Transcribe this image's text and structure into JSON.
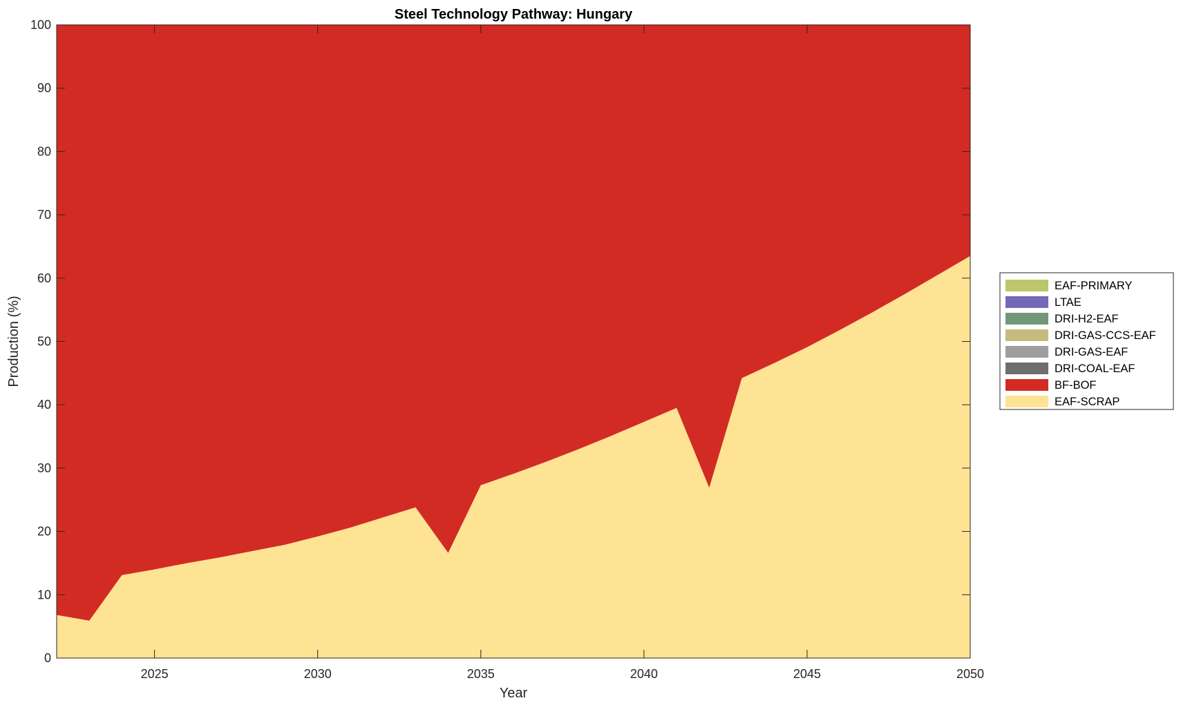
{
  "chart_data": {
    "type": "area",
    "stacked": true,
    "title": "Steel Technology Pathway: Hungary",
    "xlabel": "Year",
    "ylabel": "Production (%)",
    "xlim": [
      2022,
      2050
    ],
    "ylim": [
      0,
      100
    ],
    "xticks": [
      2025,
      2030,
      2035,
      2040,
      2045,
      2050
    ],
    "yticks": [
      0,
      10,
      20,
      30,
      40,
      50,
      60,
      70,
      80,
      90,
      100
    ],
    "grid": false,
    "legend_position": "right",
    "x": [
      2022,
      2023,
      2024,
      2025,
      2026,
      2027,
      2028,
      2029,
      2030,
      2031,
      2032,
      2033,
      2034,
      2035,
      2036,
      2037,
      2038,
      2039,
      2040,
      2041,
      2042,
      2043,
      2044,
      2045,
      2046,
      2047,
      2048,
      2049,
      2050
    ],
    "series": [
      {
        "name": "EAF-SCRAP",
        "color": "#fde393",
        "values": [
          6.8,
          5.9,
          13.1,
          14.0,
          15.0,
          15.9,
          16.9,
          17.9,
          19.2,
          20.6,
          22.2,
          23.8,
          16.6,
          27.3,
          29.1,
          31.0,
          33.0,
          35.1,
          37.3,
          39.5,
          26.9,
          44.2,
          46.6,
          49.1,
          51.8,
          54.6,
          57.5,
          60.5,
          63.5
        ]
      },
      {
        "name": "BF-BOF",
        "color": "#d22b24",
        "values": [
          93.2,
          94.1,
          86.9,
          86.0,
          85.0,
          84.1,
          83.1,
          82.1,
          80.8,
          79.4,
          77.8,
          76.2,
          83.4,
          72.7,
          70.9,
          69.0,
          67.0,
          64.9,
          62.7,
          60.5,
          73.1,
          55.8,
          53.4,
          50.9,
          48.2,
          45.4,
          42.5,
          39.5,
          36.5
        ]
      },
      {
        "name": "DRI-COAL-EAF",
        "color": "#6e6e6e",
        "values": [
          0,
          0,
          0,
          0,
          0,
          0,
          0,
          0,
          0,
          0,
          0,
          0,
          0,
          0,
          0,
          0,
          0,
          0,
          0,
          0,
          0,
          0,
          0,
          0,
          0,
          0,
          0,
          0,
          0
        ]
      },
      {
        "name": "DRI-GAS-EAF",
        "color": "#9e9e9e",
        "values": [
          0,
          0,
          0,
          0,
          0,
          0,
          0,
          0,
          0,
          0,
          0,
          0,
          0,
          0,
          0,
          0,
          0,
          0,
          0,
          0,
          0,
          0,
          0,
          0,
          0,
          0,
          0,
          0,
          0
        ]
      },
      {
        "name": "DRI-GAS-CCS-EAF",
        "color": "#c6bb7e",
        "values": [
          0,
          0,
          0,
          0,
          0,
          0,
          0,
          0,
          0,
          0,
          0,
          0,
          0,
          0,
          0,
          0,
          0,
          0,
          0,
          0,
          0,
          0,
          0,
          0,
          0,
          0,
          0,
          0,
          0
        ]
      },
      {
        "name": "DRI-H2-EAF",
        "color": "#72977b",
        "values": [
          0,
          0,
          0,
          0,
          0,
          0,
          0,
          0,
          0,
          0,
          0,
          0,
          0,
          0,
          0,
          0,
          0,
          0,
          0,
          0,
          0,
          0,
          0,
          0,
          0,
          0,
          0,
          0,
          0
        ]
      },
      {
        "name": "LTAE",
        "color": "#7469b8",
        "values": [
          0,
          0,
          0,
          0,
          0,
          0,
          0,
          0,
          0,
          0,
          0,
          0,
          0,
          0,
          0,
          0,
          0,
          0,
          0,
          0,
          0,
          0,
          0,
          0,
          0,
          0,
          0,
          0,
          0
        ]
      },
      {
        "name": "EAF-PRIMARY",
        "color": "#bdc66b",
        "values": [
          0,
          0,
          0,
          0,
          0,
          0,
          0,
          0,
          0,
          0,
          0,
          0,
          0,
          0,
          0,
          0,
          0,
          0,
          0,
          0,
          0,
          0,
          0,
          0,
          0,
          0,
          0,
          0,
          0
        ]
      }
    ]
  }
}
